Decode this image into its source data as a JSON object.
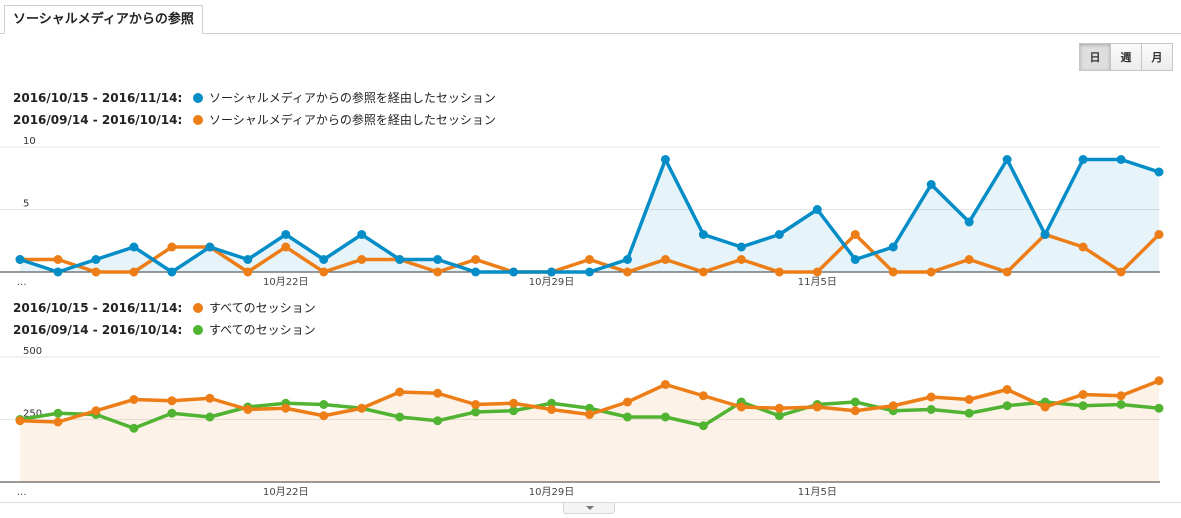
{
  "tab": {
    "label": "ソーシャルメディアからの参照"
  },
  "granularity": {
    "day": "日",
    "week": "週",
    "month": "月",
    "selected": "日"
  },
  "legend1": [
    {
      "range": "2016/10/15 - 2016/11/14:",
      "name": "ソーシャルメディアからの参照を経由したセッション",
      "color": "#058dc7"
    },
    {
      "range": "2016/09/14 - 2016/10/14:",
      "name": "ソーシャルメディアからの参照を経由したセッション",
      "color": "#ed7e17"
    }
  ],
  "legend2": [
    {
      "range": "2016/10/15 - 2016/11/14:",
      "name": "すべてのセッション",
      "color": "#ed7e17"
    },
    {
      "range": "2016/09/14 - 2016/10/14:",
      "name": "すべてのセッション",
      "color": "#50b432"
    }
  ],
  "chart_data": [
    {
      "type": "line",
      "ylim": [
        0,
        10
      ],
      "yticks": [
        "10",
        "5"
      ],
      "xtick_labels": [
        "...",
        "10月22日",
        "10月29日",
        "11月5日"
      ],
      "series": [
        {
          "name": "ソーシャルメディアからの参照を経由したセッション",
          "color": "#058dc7",
          "filled": true,
          "values": [
            1,
            0,
            1,
            2,
            0,
            2,
            1,
            3,
            1,
            3,
            1,
            1,
            0,
            0,
            0,
            0,
            1,
            9,
            3,
            2,
            3,
            5,
            1,
            2,
            7,
            4,
            9,
            3,
            9,
            9,
            8
          ]
        },
        {
          "name": "ソーシャルメディアからの参照を経由したセッション",
          "color": "#ed7e17",
          "filled": false,
          "values": [
            1,
            1,
            0,
            0,
            2,
            2,
            0,
            2,
            0,
            1,
            1,
            0,
            1,
            0,
            0,
            1,
            0,
            1,
            0,
            1,
            0,
            0,
            3,
            0,
            0,
            1,
            0,
            3,
            2,
            0,
            3
          ]
        }
      ]
    },
    {
      "type": "line",
      "ylim": [
        0,
        500
      ],
      "yticks": [
        "500",
        "250"
      ],
      "xtick_labels": [
        "...",
        "10月22日",
        "10月29日",
        "11月5日"
      ],
      "series": [
        {
          "name": "すべてのセッション",
          "color": "#ed7e17",
          "filled": true,
          "values": [
            245,
            240,
            285,
            330,
            325,
            335,
            290,
            295,
            265,
            295,
            360,
            355,
            310,
            315,
            290,
            270,
            320,
            390,
            345,
            300,
            295,
            300,
            285,
            305,
            340,
            330,
            370,
            300,
            350,
            345,
            405
          ]
        },
        {
          "name": "すべてのセッション",
          "color": "#50b432",
          "filled": false,
          "values": [
            250,
            275,
            270,
            215,
            275,
            260,
            300,
            315,
            310,
            295,
            260,
            245,
            280,
            285,
            315,
            295,
            260,
            260,
            225,
            320,
            265,
            310,
            320,
            285,
            290,
            275,
            305,
            320,
            305,
            310,
            295
          ]
        }
      ]
    }
  ]
}
